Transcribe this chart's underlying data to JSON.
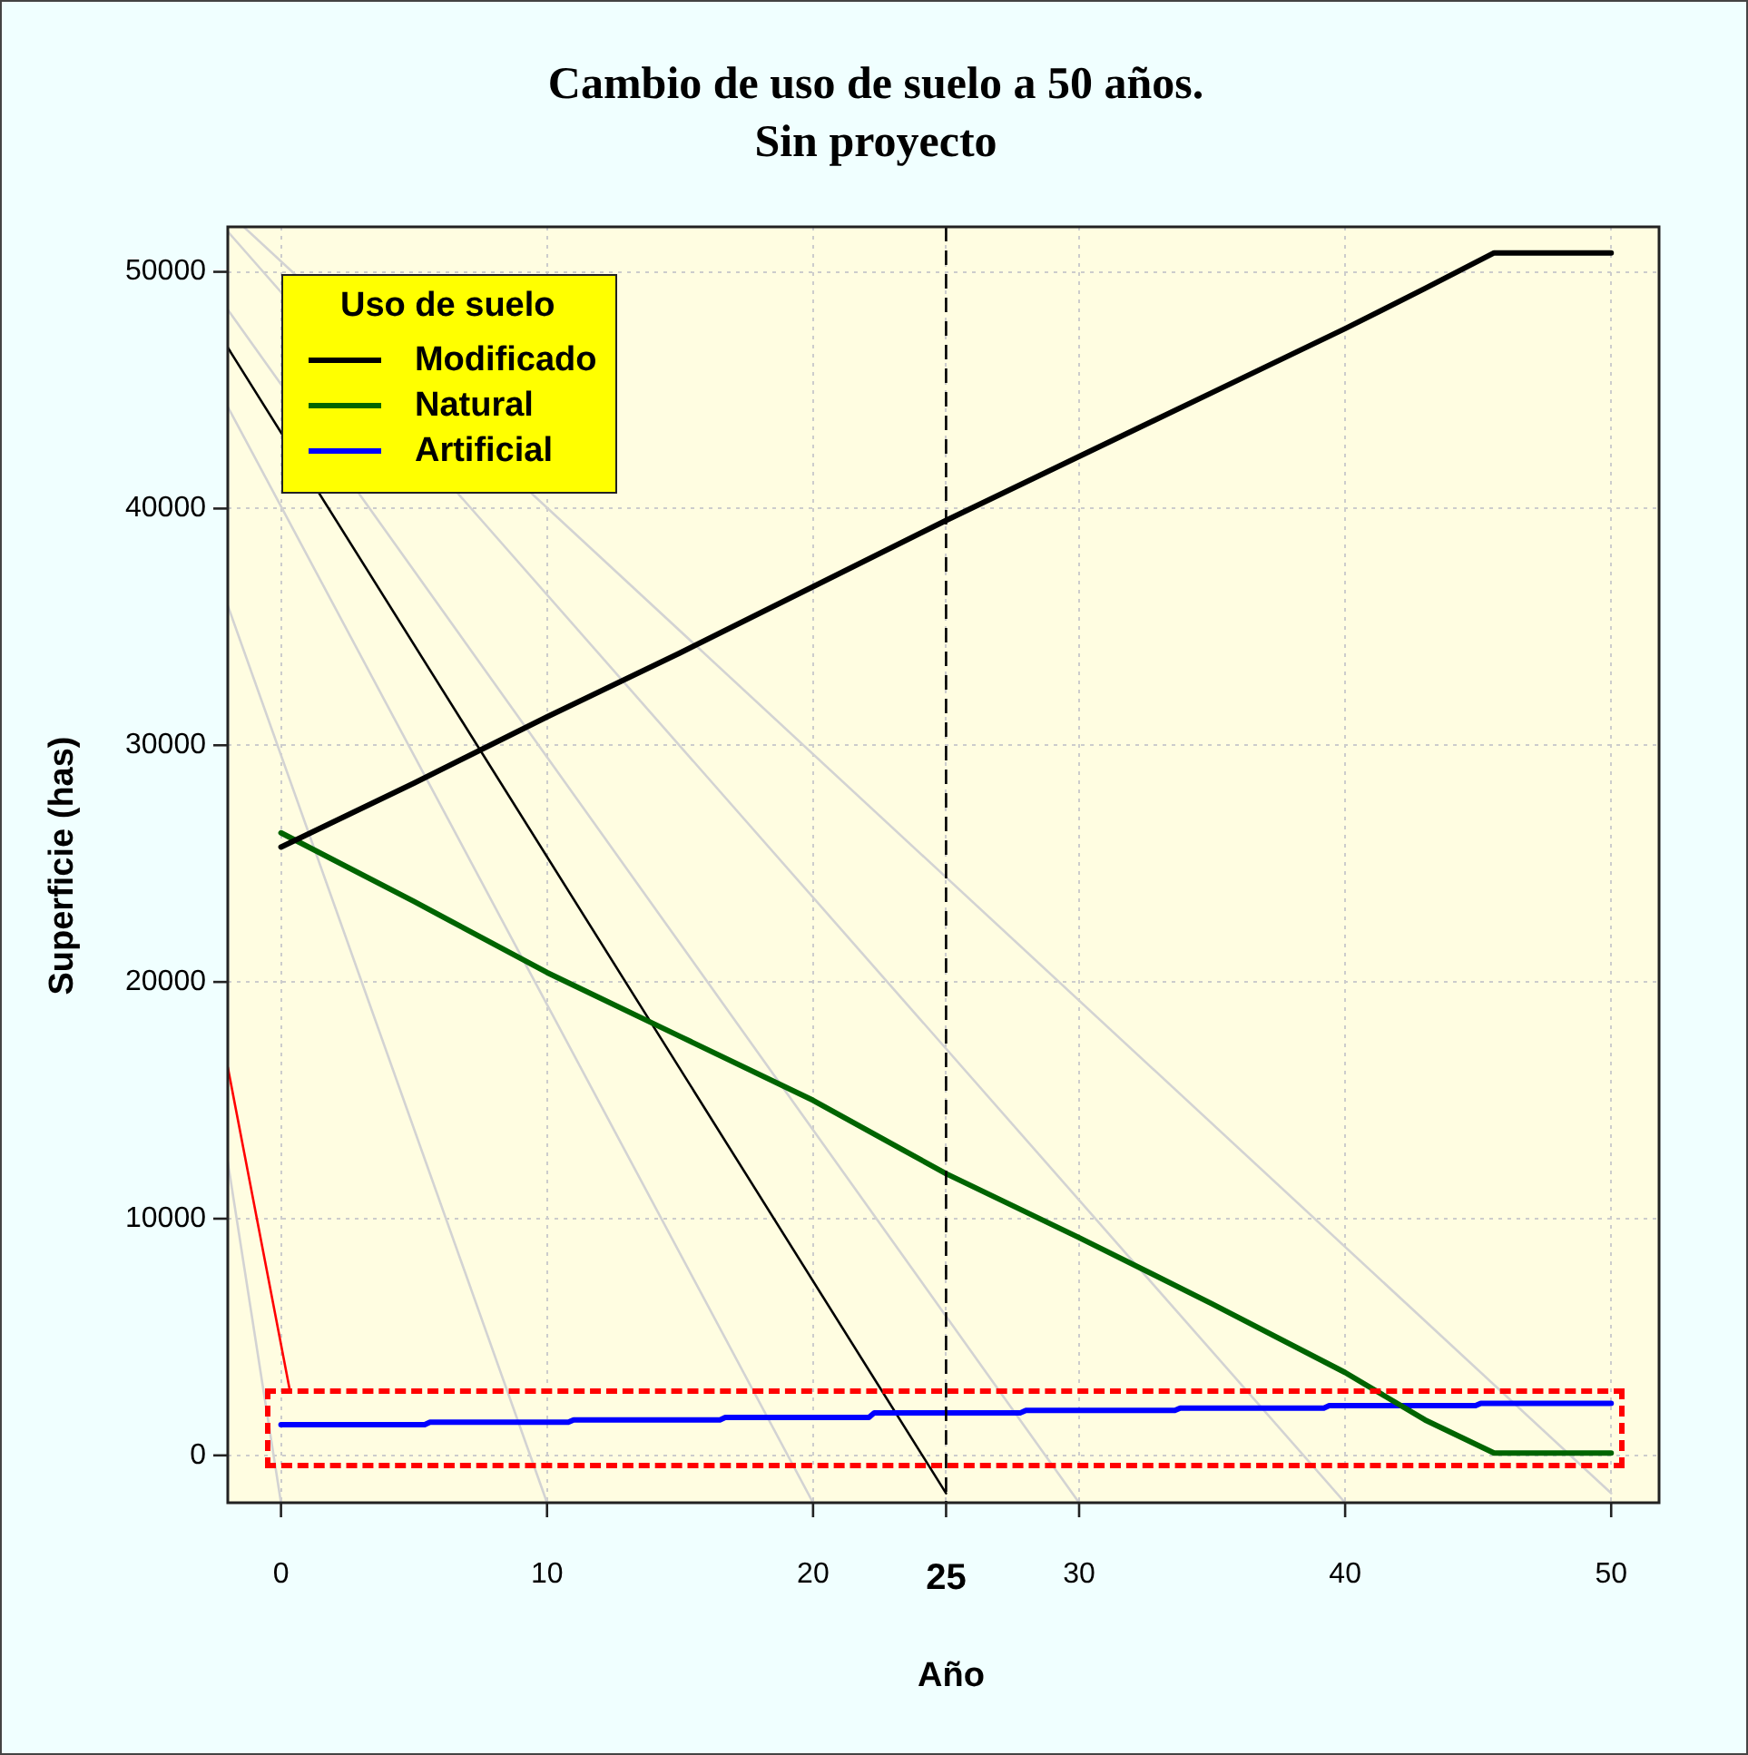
{
  "chart_data": {
    "type": "line",
    "title": "Cambio de uso de suelo a 50 años.\nSin proyecto",
    "xlabel": "Año",
    "ylabel": "Superficie (has)",
    "legend_title": "Uso de suelo",
    "legend": "top left",
    "grid": true,
    "xlim": [
      -2,
      51.8
    ],
    "ylim": [
      -2000,
      51900
    ],
    "xticks": [
      0,
      10,
      20,
      25,
      30,
      40,
      50
    ],
    "yticks": [
      0,
      10000,
      20000,
      30000,
      40000,
      50000
    ],
    "ref_lines": [
      {
        "axis": "x",
        "value": 25,
        "color": "#000000",
        "line_style": "dashed"
      }
    ],
    "series": [
      {
        "name": "Modificado",
        "color": "#000000",
        "x": [
          0,
          5,
          10,
          15,
          20,
          25,
          30,
          35,
          40,
          43,
          45.6,
          50
        ],
        "values": [
          25700,
          28400,
          31200,
          33900,
          36700,
          39500,
          42200,
          44900,
          47600,
          49300,
          50800,
          50800
        ]
      },
      {
        "name": "Natural",
        "color": "#006400",
        "x": [
          0,
          5,
          10,
          15,
          20,
          25,
          30,
          35,
          40,
          43,
          45.6,
          50
        ],
        "values": [
          26300,
          23400,
          20400,
          17700,
          15000,
          11900,
          9200,
          6400,
          3500,
          1500,
          100,
          100
        ]
      },
      {
        "name": "Artificial",
        "color": "#0000ff",
        "x": [
          0,
          5.4,
          5.6,
          10.8,
          11,
          16.5,
          16.7,
          22.1,
          22.3,
          27.8,
          28,
          33.6,
          33.8,
          39.2,
          39.4,
          44.9,
          45.1,
          50
        ],
        "values": [
          1300,
          1300,
          1400,
          1400,
          1500,
          1500,
          1600,
          1600,
          1800,
          1800,
          1900,
          1900,
          2000,
          2000,
          2100,
          2100,
          2200,
          2200
        ]
      },
      {
        "color": "#000000",
        "x": [
          -2,
          25
        ],
        "values": [
          46800,
          -1600
        ]
      },
      {
        "color": "#ff0000",
        "x": [
          -2,
          0.34
        ],
        "values": [
          16400,
          2700
        ]
      },
      {
        "color": "#d3d3d3",
        "x": [
          -2,
          0
        ],
        "values": [
          12400,
          -2000
        ]
      },
      {
        "color": "#d3d3d3",
        "x": [
          -2,
          10
        ],
        "values": [
          35900,
          -2000
        ]
      },
      {
        "color": "#d3d3d3",
        "x": [
          -2,
          20
        ],
        "values": [
          44300,
          -2000
        ]
      },
      {
        "color": "#d3d3d3",
        "x": [
          -2,
          30
        ],
        "values": [
          48400,
          -2000
        ]
      },
      {
        "color": "#d3d3d3",
        "x": [
          -2,
          40
        ],
        "values": [
          51700,
          -2000
        ]
      },
      {
        "color": "#d3d3d3",
        "x": [
          -1.4,
          50
        ],
        "values": [
          51900,
          -1600
        ]
      }
    ]
  }
}
